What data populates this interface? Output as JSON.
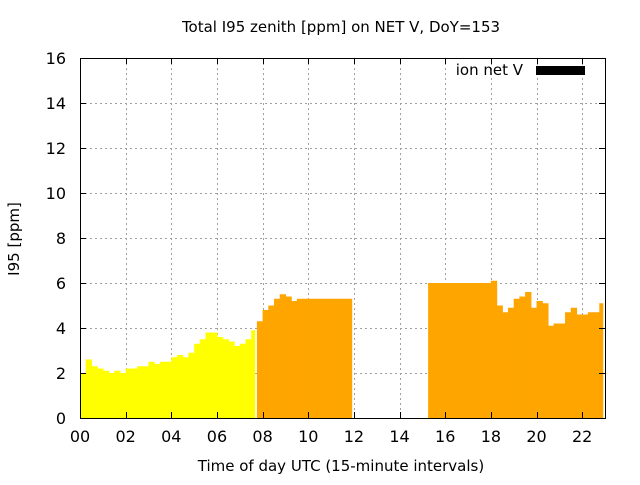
{
  "chart_data": {
    "type": "bar",
    "title": "Total I95 zenith [ppm] on NET V, DoY=153",
    "xlabel": "Time of day UTC (15-minute intervals)",
    "ylabel": "I95 [ppm]",
    "xlim": [
      0,
      23
    ],
    "ylim": [
      0,
      16
    ],
    "xticks": [
      0,
      2,
      4,
      6,
      8,
      10,
      12,
      14,
      16,
      18,
      20,
      22
    ],
    "xtick_labels": [
      "00",
      "02",
      "04",
      "06",
      "08",
      "10",
      "12",
      "14",
      "16",
      "18",
      "20",
      "22"
    ],
    "yticks": [
      0,
      2,
      4,
      6,
      8,
      10,
      12,
      14,
      16
    ],
    "ytick_labels": [
      "0",
      "2",
      "4",
      "6",
      "8",
      "10",
      "12",
      "14",
      "16"
    ],
    "grid": true,
    "legend": {
      "position": "top-right",
      "entries": [
        {
          "label": "ion net V",
          "color": "#000000"
        }
      ]
    },
    "colors": {
      "low": "#ffff00",
      "high": "#ffa500"
    },
    "bar_interval_hours": 0.25,
    "series": [
      {
        "color": "#ffff00",
        "x": [
          0.0,
          0.25,
          0.5,
          0.75,
          1.0,
          1.25,
          1.5,
          1.75,
          2.0,
          2.25,
          2.5,
          2.75,
          3.0,
          3.25,
          3.5,
          3.75,
          4.0,
          4.25,
          4.5,
          4.75,
          5.0,
          5.25,
          5.5,
          5.75,
          6.0,
          6.25,
          6.5,
          6.75,
          7.0,
          7.25,
          7.5
        ],
        "values": [
          2.0,
          2.6,
          2.3,
          2.2,
          2.1,
          2.0,
          2.1,
          2.0,
          2.2,
          2.2,
          2.3,
          2.3,
          2.5,
          2.4,
          2.5,
          2.5,
          2.7,
          2.8,
          2.7,
          2.9,
          3.3,
          3.5,
          3.8,
          3.8,
          3.6,
          3.5,
          3.4,
          3.2,
          3.3,
          3.5,
          3.9
        ]
      },
      {
        "color": "#ffa500",
        "x": [
          7.75,
          8.0,
          8.25,
          8.5,
          8.75,
          9.0,
          9.25,
          9.5,
          9.75,
          10.0,
          10.25,
          10.5,
          10.75,
          11.0,
          11.25,
          11.5,
          11.75,
          15.25,
          15.5,
          15.75,
          16.0,
          16.25,
          16.5,
          16.75,
          17.0,
          17.25,
          17.5,
          17.75,
          18.0,
          18.25,
          18.5,
          18.75,
          19.0,
          19.25,
          19.5,
          19.75,
          20.0,
          20.25,
          20.5,
          20.75,
          21.0,
          21.25,
          21.5,
          21.75,
          22.0,
          22.25,
          22.5,
          22.75
        ],
        "values": [
          4.3,
          4.8,
          5.0,
          5.3,
          5.5,
          5.4,
          5.2,
          5.3,
          5.3,
          5.3,
          5.3,
          5.3,
          5.3,
          5.3,
          5.3,
          5.3,
          5.3,
          6.0,
          6.0,
          6.0,
          6.0,
          6.0,
          6.0,
          6.0,
          6.0,
          6.0,
          6.0,
          6.0,
          6.1,
          5.0,
          4.7,
          4.9,
          5.3,
          5.4,
          5.6,
          4.9,
          5.2,
          5.1,
          4.1,
          4.2,
          4.2,
          4.7,
          4.9,
          4.6,
          4.6,
          4.7,
          4.7,
          5.1
        ]
      }
    ]
  }
}
